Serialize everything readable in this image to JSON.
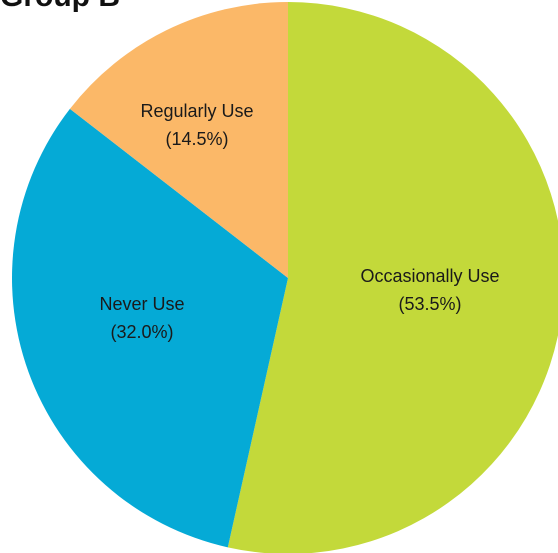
{
  "chart_data": {
    "type": "pie",
    "title": "Group B",
    "slices": [
      {
        "label": "Occasionally Use",
        "percent_label": "(53.5%)",
        "value": 53.5,
        "color": "#C3D93A"
      },
      {
        "label": "Never Use",
        "percent_label": "(32.0%)",
        "value": 32.0,
        "color": "#05AAD6"
      },
      {
        "label": "Regularly Use",
        "percent_label": "(14.5%)",
        "value": 14.5,
        "color": "#FBB868"
      }
    ]
  }
}
